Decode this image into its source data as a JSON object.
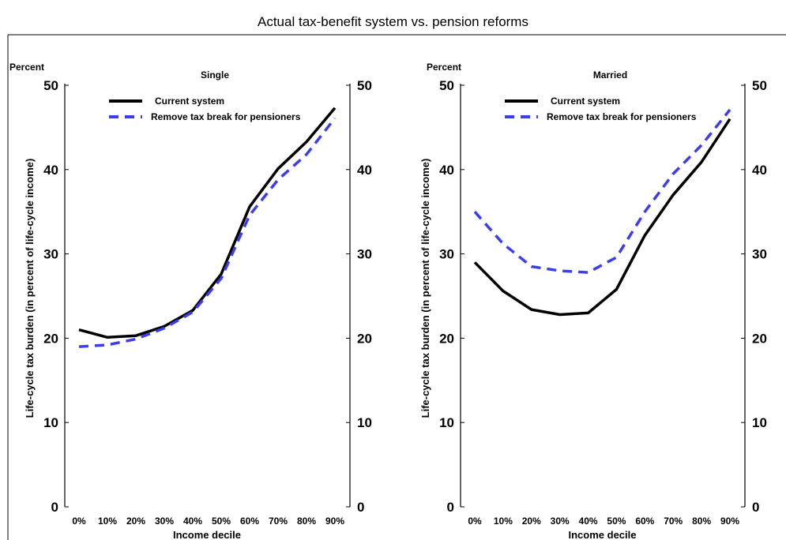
{
  "title": "Actual tax-benefit system vs. pension reforms",
  "colors": {
    "current": "#000000",
    "reform": "#3c3cf0"
  },
  "chart_data": [
    {
      "type": "line",
      "title": "Single",
      "xlabel": "Income decile",
      "ylabel": "Life-cycle tax burden (in percent of life-cycle income)",
      "y_unit_label": "Percent",
      "ylim": [
        0,
        50
      ],
      "yticks": [
        "0",
        "10",
        "20",
        "30",
        "40",
        "50"
      ],
      "categories": [
        "0%",
        "10%",
        "20%",
        "30%",
        "40%",
        "50%",
        "60%",
        "70%",
        "80%",
        "90%"
      ],
      "legend": "top-left",
      "series": [
        {
          "name": "Current system",
          "values": [
            21.0,
            20.1,
            20.3,
            21.4,
            23.3,
            27.6,
            35.6,
            40.1,
            43.3,
            47.3
          ]
        },
        {
          "name": "Remove tax break for pensioners",
          "values": [
            19.0,
            19.2,
            19.9,
            21.2,
            23.1,
            27.1,
            34.6,
            38.8,
            41.8,
            46.1
          ]
        }
      ]
    },
    {
      "type": "line",
      "title": "Married",
      "xlabel": "Income decile",
      "ylabel": "Life-cycle tax burden (in percent of life-cycle income)",
      "y_unit_label": "Percent",
      "ylim": [
        0,
        50
      ],
      "yticks": [
        "0",
        "10",
        "20",
        "30",
        "40",
        "50"
      ],
      "categories": [
        "0%",
        "10%",
        "20%",
        "30%",
        "40%",
        "50%",
        "60%",
        "70%",
        "80%",
        "90%"
      ],
      "legend": "top-left",
      "series": [
        {
          "name": "Current system",
          "values": [
            29.0,
            25.6,
            23.4,
            22.8,
            23.0,
            25.8,
            32.2,
            37.0,
            40.9,
            46.0
          ]
        },
        {
          "name": "Remove tax break for pensioners",
          "values": [
            35.0,
            31.2,
            28.5,
            28.0,
            27.8,
            29.6,
            35.0,
            39.5,
            42.9,
            47.1
          ]
        }
      ]
    }
  ]
}
